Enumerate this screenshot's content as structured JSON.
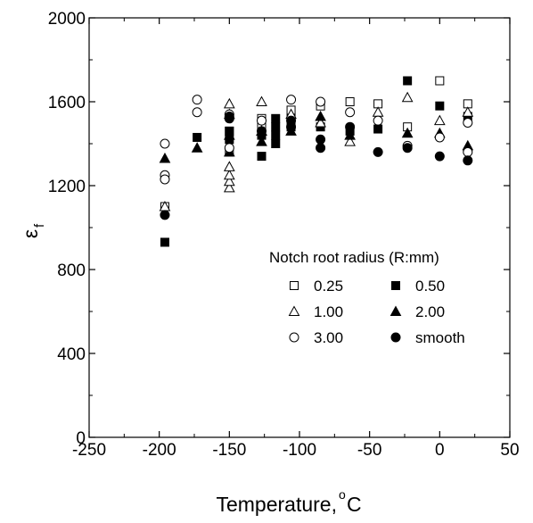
{
  "chart_data": {
    "type": "scatter",
    "title": "",
    "xlabel": "Temperature, ",
    "xlabel_unit": "C",
    "xlabel_degree": "o",
    "ylabel": "ε",
    "ylabel_sub": "f",
    "xlim": [
      -250,
      50
    ],
    "ylim": [
      0,
      2000
    ],
    "xticks": [
      -250,
      -200,
      -150,
      -100,
      -50,
      0,
      50
    ],
    "yticks": [
      0,
      400,
      800,
      1200,
      1600,
      2000
    ],
    "xtick_labels": [
      "-250",
      "-200",
      "-150",
      "-100",
      "-50",
      "0",
      "50"
    ],
    "ytick_labels": [
      "0",
      "400",
      "800",
      "1200",
      "1600",
      "2000"
    ],
    "grid": false,
    "legend": {
      "title": "Notch root radius (R:mm)",
      "placement": "center-right"
    },
    "series": [
      {
        "name": "0.25",
        "marker": "square-open",
        "points": [
          [
            -196,
            1100
          ],
          [
            -150,
            1360
          ],
          [
            -150,
            1460
          ],
          [
            -127,
            1480
          ],
          [
            -127,
            1520
          ],
          [
            -106,
            1520
          ],
          [
            -106,
            1560
          ],
          [
            -85,
            1580
          ],
          [
            -64,
            1600
          ],
          [
            -44,
            1590
          ],
          [
            -23,
            1480
          ],
          [
            0,
            1700
          ],
          [
            20,
            1590
          ]
        ]
      },
      {
        "name": "0.50",
        "marker": "square-filled",
        "points": [
          [
            -196,
            930
          ],
          [
            -173,
            1430
          ],
          [
            -150,
            1420
          ],
          [
            -150,
            1460
          ],
          [
            -127,
            1340
          ],
          [
            -127,
            1440
          ],
          [
            -117,
            1400
          ],
          [
            -117,
            1440
          ],
          [
            -117,
            1480
          ],
          [
            -117,
            1520
          ],
          [
            -106,
            1480
          ],
          [
            -85,
            1480
          ],
          [
            -64,
            1460
          ],
          [
            -44,
            1470
          ],
          [
            -23,
            1700
          ],
          [
            0,
            1580
          ],
          [
            20,
            1530
          ]
        ]
      },
      {
        "name": "1.00",
        "marker": "triangle-open",
        "points": [
          [
            -196,
            1100
          ],
          [
            -150,
            1190
          ],
          [
            -150,
            1220
          ],
          [
            -150,
            1250
          ],
          [
            -150,
            1290
          ],
          [
            -150,
            1540
          ],
          [
            -150,
            1590
          ],
          [
            -127,
            1600
          ],
          [
            -127,
            1460
          ],
          [
            -106,
            1540
          ],
          [
            -85,
            1500
          ],
          [
            -64,
            1410
          ],
          [
            -44,
            1550
          ],
          [
            -23,
            1620
          ],
          [
            0,
            1510
          ],
          [
            20,
            1550
          ]
        ]
      },
      {
        "name": "2.00",
        "marker": "triangle-filled",
        "points": [
          [
            -196,
            1330
          ],
          [
            -173,
            1380
          ],
          [
            -150,
            1360
          ],
          [
            -150,
            1440
          ],
          [
            -127,
            1410
          ],
          [
            -127,
            1460
          ],
          [
            -106,
            1460
          ],
          [
            -85,
            1530
          ],
          [
            -64,
            1440
          ],
          [
            -23,
            1450
          ],
          [
            0,
            1450
          ],
          [
            20,
            1390
          ]
        ]
      },
      {
        "name": "3.00",
        "marker": "circle-open",
        "points": [
          [
            -196,
            1400
          ],
          [
            -196,
            1250
          ],
          [
            -196,
            1230
          ],
          [
            -173,
            1610
          ],
          [
            -173,
            1550
          ],
          [
            -150,
            1380
          ],
          [
            -150,
            1540
          ],
          [
            -127,
            1510
          ],
          [
            -106,
            1610
          ],
          [
            -85,
            1600
          ],
          [
            -64,
            1550
          ],
          [
            -44,
            1510
          ],
          [
            -23,
            1390
          ],
          [
            0,
            1430
          ],
          [
            20,
            1360
          ],
          [
            20,
            1500
          ]
        ]
      },
      {
        "name": "smooth",
        "marker": "circle-filled",
        "points": [
          [
            -196,
            1060
          ],
          [
            -150,
            1520
          ],
          [
            -150,
            1530
          ],
          [
            -127,
            1460
          ],
          [
            -106,
            1480
          ],
          [
            -106,
            1510
          ],
          [
            -85,
            1380
          ],
          [
            -85,
            1420
          ],
          [
            -64,
            1480
          ],
          [
            -44,
            1360
          ],
          [
            -23,
            1380
          ],
          [
            0,
            1340
          ],
          [
            20,
            1320
          ]
        ]
      }
    ]
  }
}
